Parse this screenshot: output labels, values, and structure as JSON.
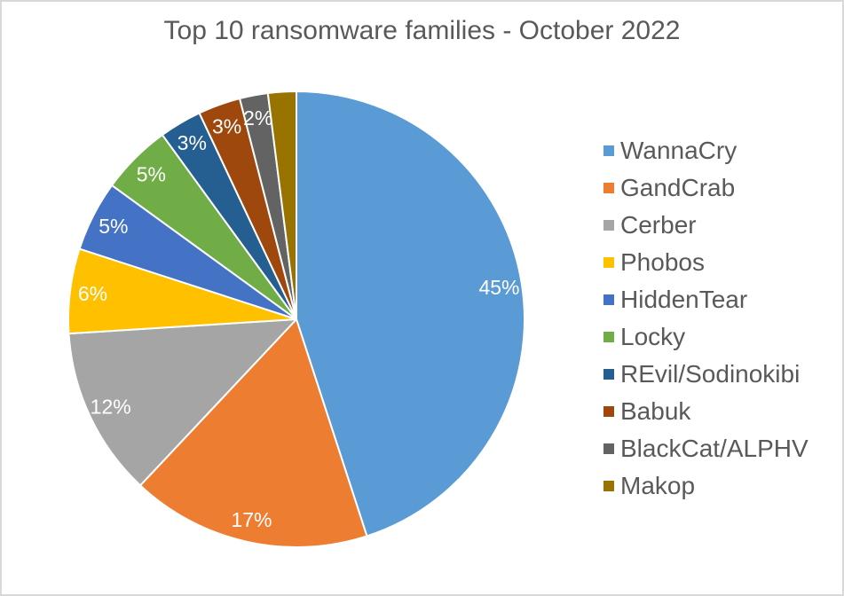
{
  "frame": {
    "background_color": "#FFFFFF",
    "border_color": "#D8D8D8"
  },
  "chart_data": {
    "type": "pie",
    "title": "Top 10 ransomware families - October 2022",
    "categories": [
      "WannaCry",
      "GandCrab",
      "Cerber",
      "Phobos",
      "HiddenTear",
      "Locky",
      "REvil/Sodinokibi",
      "Babuk",
      "BlackCat/ALPHV",
      "Makop"
    ],
    "values": [
      45,
      17,
      12,
      6,
      5,
      5,
      3,
      3,
      2,
      2
    ],
    "slice_labels": [
      "45%",
      "17%",
      "12%",
      "6%",
      "5%",
      "5%",
      "3%",
      "3%",
      "2%",
      ""
    ],
    "colors": [
      "#5B9BD5",
      "#ED7D31",
      "#A5A5A5",
      "#FFC000",
      "#4472C4",
      "#70AD47",
      "#255E91",
      "#9E480E",
      "#636363",
      "#997300"
    ],
    "total": 100,
    "start_angle_deg": 0,
    "direction": "clockwise",
    "legend_position": "right",
    "title_color": "#595959",
    "legend_text_color": "#595959",
    "slice_label_color": "#FFFFFF",
    "slice_separator_color": "#FFFFFF"
  }
}
